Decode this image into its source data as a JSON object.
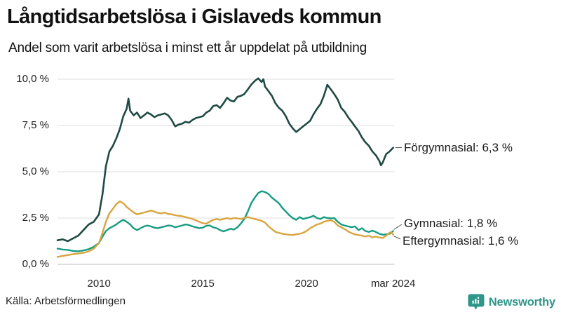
{
  "header": {
    "title": "Långtidsarbetslösa i Gislaveds kommun",
    "subtitle": "Andel som varit arbetslösa i minst ett år uppdelat på utbildning"
  },
  "footer": {
    "source": "Källa: Arbetsförmedlingen",
    "brand": "Newsworthy",
    "brand_color": "#2e9688"
  },
  "chart_data": {
    "type": "line",
    "title": "Långtidsarbetslösa i Gislaveds kommun",
    "subtitle": "Andel som varit arbetslösa i minst ett år uppdelat på utbildning",
    "unit": "%",
    "grid": "horizontal",
    "legend_position": "end-of-line-labels",
    "x_axis": {
      "range": [
        2008,
        2024.25
      ],
      "ticks": [
        {
          "x": 2010,
          "label": "2010"
        },
        {
          "x": 2015,
          "label": "2015"
        },
        {
          "x": 2020,
          "label": "2020"
        },
        {
          "x": 2024.17,
          "label": "mar 2024"
        }
      ]
    },
    "y_axis": {
      "range": [
        0,
        10.4
      ],
      "ticks": [
        {
          "v": 10,
          "label": "10,0 %"
        },
        {
          "v": 7.5,
          "label": "7,5 %"
        },
        {
          "v": 5,
          "label": "5,0 %"
        },
        {
          "v": 2.5,
          "label": "2,5 %"
        },
        {
          "v": 0,
          "label": "0,0 %"
        }
      ]
    },
    "series": [
      {
        "name": "Förgymnasial",
        "end_label": "Förgymnasial: 6,3 %",
        "end_value": 6.3,
        "color": "#1f4a43",
        "points": [
          [
            2008.0,
            1.3
          ],
          [
            2008.25,
            1.35
          ],
          [
            2008.5,
            1.25
          ],
          [
            2008.75,
            1.4
          ],
          [
            2009.0,
            1.55
          ],
          [
            2009.25,
            1.85
          ],
          [
            2009.5,
            2.15
          ],
          [
            2009.75,
            2.3
          ],
          [
            2010.0,
            2.7
          ],
          [
            2010.17,
            3.8
          ],
          [
            2010.33,
            5.3
          ],
          [
            2010.5,
            6.1
          ],
          [
            2010.67,
            6.4
          ],
          [
            2010.83,
            6.8
          ],
          [
            2011.0,
            7.3
          ],
          [
            2011.17,
            8.0
          ],
          [
            2011.33,
            8.4
          ],
          [
            2011.42,
            8.95
          ],
          [
            2011.5,
            8.3
          ],
          [
            2011.67,
            8.05
          ],
          [
            2011.83,
            8.2
          ],
          [
            2012.0,
            7.9
          ],
          [
            2012.17,
            8.05
          ],
          [
            2012.33,
            8.2
          ],
          [
            2012.5,
            8.1
          ],
          [
            2012.67,
            7.95
          ],
          [
            2012.83,
            8.05
          ],
          [
            2013.0,
            8.1
          ],
          [
            2013.17,
            8.15
          ],
          [
            2013.33,
            8.05
          ],
          [
            2013.5,
            7.8
          ],
          [
            2013.67,
            7.45
          ],
          [
            2013.83,
            7.55
          ],
          [
            2014.0,
            7.6
          ],
          [
            2014.17,
            7.7
          ],
          [
            2014.33,
            7.65
          ],
          [
            2014.5,
            7.8
          ],
          [
            2014.67,
            7.9
          ],
          [
            2014.83,
            7.95
          ],
          [
            2015.0,
            8.0
          ],
          [
            2015.17,
            8.2
          ],
          [
            2015.33,
            8.3
          ],
          [
            2015.5,
            8.55
          ],
          [
            2015.67,
            8.6
          ],
          [
            2015.83,
            8.45
          ],
          [
            2016.0,
            8.7
          ],
          [
            2016.17,
            9.0
          ],
          [
            2016.33,
            8.85
          ],
          [
            2016.5,
            8.8
          ],
          [
            2016.67,
            9.05
          ],
          [
            2016.83,
            9.1
          ],
          [
            2017.0,
            9.2
          ],
          [
            2017.17,
            9.45
          ],
          [
            2017.33,
            9.7
          ],
          [
            2017.5,
            9.9
          ],
          [
            2017.67,
            10.05
          ],
          [
            2017.83,
            9.85
          ],
          [
            2017.92,
            10.0
          ],
          [
            2018.0,
            9.6
          ],
          [
            2018.17,
            9.35
          ],
          [
            2018.33,
            9.1
          ],
          [
            2018.5,
            8.7
          ],
          [
            2018.67,
            8.45
          ],
          [
            2018.83,
            8.3
          ],
          [
            2019.0,
            8.0
          ],
          [
            2019.17,
            7.6
          ],
          [
            2019.33,
            7.35
          ],
          [
            2019.5,
            7.15
          ],
          [
            2019.67,
            7.3
          ],
          [
            2019.83,
            7.45
          ],
          [
            2020.0,
            7.6
          ],
          [
            2020.17,
            7.75
          ],
          [
            2020.33,
            8.1
          ],
          [
            2020.5,
            8.4
          ],
          [
            2020.67,
            8.65
          ],
          [
            2020.83,
            9.1
          ],
          [
            2021.0,
            9.7
          ],
          [
            2021.17,
            9.45
          ],
          [
            2021.33,
            9.2
          ],
          [
            2021.5,
            8.9
          ],
          [
            2021.67,
            8.45
          ],
          [
            2021.83,
            8.25
          ],
          [
            2022.0,
            7.95
          ],
          [
            2022.17,
            7.7
          ],
          [
            2022.33,
            7.45
          ],
          [
            2022.5,
            7.2
          ],
          [
            2022.67,
            6.85
          ],
          [
            2022.83,
            6.6
          ],
          [
            2023.0,
            6.4
          ],
          [
            2023.17,
            6.1
          ],
          [
            2023.33,
            5.9
          ],
          [
            2023.5,
            5.6
          ],
          [
            2023.58,
            5.35
          ],
          [
            2023.67,
            5.5
          ],
          [
            2023.83,
            5.95
          ],
          [
            2024.0,
            6.1
          ],
          [
            2024.17,
            6.3
          ]
        ]
      },
      {
        "name": "Gymnasial",
        "end_label": "Gymnasial: 1,8 %",
        "end_value": 1.8,
        "color": "#169b81",
        "points": [
          [
            2008.0,
            0.85
          ],
          [
            2008.25,
            0.8
          ],
          [
            2008.5,
            0.78
          ],
          [
            2008.75,
            0.72
          ],
          [
            2009.0,
            0.7
          ],
          [
            2009.25,
            0.75
          ],
          [
            2009.5,
            0.82
          ],
          [
            2009.75,
            0.95
          ],
          [
            2010.0,
            1.15
          ],
          [
            2010.17,
            1.5
          ],
          [
            2010.33,
            1.8
          ],
          [
            2010.5,
            1.95
          ],
          [
            2010.67,
            2.05
          ],
          [
            2010.83,
            2.15
          ],
          [
            2011.0,
            2.3
          ],
          [
            2011.17,
            2.4
          ],
          [
            2011.33,
            2.3
          ],
          [
            2011.5,
            2.15
          ],
          [
            2011.67,
            1.95
          ],
          [
            2011.83,
            1.85
          ],
          [
            2012.0,
            1.95
          ],
          [
            2012.17,
            2.05
          ],
          [
            2012.33,
            2.1
          ],
          [
            2012.5,
            2.05
          ],
          [
            2012.67,
            1.98
          ],
          [
            2012.83,
            1.95
          ],
          [
            2013.0,
            2.0
          ],
          [
            2013.17,
            2.05
          ],
          [
            2013.33,
            2.1
          ],
          [
            2013.5,
            2.08
          ],
          [
            2013.67,
            2.0
          ],
          [
            2013.83,
            2.05
          ],
          [
            2014.0,
            2.1
          ],
          [
            2014.17,
            2.15
          ],
          [
            2014.33,
            2.12
          ],
          [
            2014.5,
            2.05
          ],
          [
            2014.67,
            2.0
          ],
          [
            2014.83,
            1.95
          ],
          [
            2015.0,
            1.98
          ],
          [
            2015.17,
            2.08
          ],
          [
            2015.33,
            2.1
          ],
          [
            2015.5,
            2.0
          ],
          [
            2015.67,
            1.95
          ],
          [
            2015.83,
            1.85
          ],
          [
            2016.0,
            1.78
          ],
          [
            2016.17,
            1.85
          ],
          [
            2016.33,
            1.92
          ],
          [
            2016.5,
            1.88
          ],
          [
            2016.67,
            2.0
          ],
          [
            2016.83,
            2.2
          ],
          [
            2017.0,
            2.45
          ],
          [
            2017.17,
            2.85
          ],
          [
            2017.33,
            3.3
          ],
          [
            2017.5,
            3.6
          ],
          [
            2017.67,
            3.85
          ],
          [
            2017.83,
            3.95
          ],
          [
            2018.0,
            3.9
          ],
          [
            2018.17,
            3.8
          ],
          [
            2018.33,
            3.6
          ],
          [
            2018.5,
            3.45
          ],
          [
            2018.67,
            3.3
          ],
          [
            2018.83,
            3.05
          ],
          [
            2019.0,
            2.85
          ],
          [
            2019.17,
            2.65
          ],
          [
            2019.33,
            2.5
          ],
          [
            2019.5,
            2.4
          ],
          [
            2019.67,
            2.55
          ],
          [
            2019.83,
            2.45
          ],
          [
            2020.0,
            2.5
          ],
          [
            2020.17,
            2.55
          ],
          [
            2020.33,
            2.62
          ],
          [
            2020.5,
            2.5
          ],
          [
            2020.67,
            2.45
          ],
          [
            2020.83,
            2.55
          ],
          [
            2021.0,
            2.5
          ],
          [
            2021.17,
            2.48
          ],
          [
            2021.33,
            2.5
          ],
          [
            2021.5,
            2.3
          ],
          [
            2021.67,
            2.15
          ],
          [
            2021.83,
            2.1
          ],
          [
            2022.0,
            2.05
          ],
          [
            2022.17,
            2.0
          ],
          [
            2022.33,
            2.05
          ],
          [
            2022.5,
            1.85
          ],
          [
            2022.67,
            1.95
          ],
          [
            2022.83,
            1.8
          ],
          [
            2023.0,
            1.75
          ],
          [
            2023.17,
            1.82
          ],
          [
            2023.33,
            1.75
          ],
          [
            2023.5,
            1.65
          ],
          [
            2023.67,
            1.6
          ],
          [
            2023.83,
            1.62
          ],
          [
            2024.0,
            1.65
          ],
          [
            2024.08,
            1.7
          ],
          [
            2024.17,
            1.8
          ]
        ]
      },
      {
        "name": "Eftergymnasial",
        "end_label": "Eftergymnasial: 1,6 %",
        "end_value": 1.6,
        "color": "#d9a43e",
        "points": [
          [
            2008.0,
            0.4
          ],
          [
            2008.25,
            0.45
          ],
          [
            2008.5,
            0.5
          ],
          [
            2008.75,
            0.55
          ],
          [
            2009.0,
            0.58
          ],
          [
            2009.25,
            0.62
          ],
          [
            2009.5,
            0.7
          ],
          [
            2009.75,
            0.85
          ],
          [
            2010.0,
            1.15
          ],
          [
            2010.17,
            1.7
          ],
          [
            2010.33,
            2.3
          ],
          [
            2010.5,
            2.75
          ],
          [
            2010.67,
            3.0
          ],
          [
            2010.83,
            3.25
          ],
          [
            2011.0,
            3.4
          ],
          [
            2011.17,
            3.3
          ],
          [
            2011.33,
            3.1
          ],
          [
            2011.5,
            2.95
          ],
          [
            2011.67,
            2.8
          ],
          [
            2011.83,
            2.7
          ],
          [
            2012.0,
            2.75
          ],
          [
            2012.17,
            2.8
          ],
          [
            2012.33,
            2.85
          ],
          [
            2012.5,
            2.9
          ],
          [
            2012.67,
            2.85
          ],
          [
            2012.83,
            2.78
          ],
          [
            2013.0,
            2.75
          ],
          [
            2013.17,
            2.8
          ],
          [
            2013.33,
            2.72
          ],
          [
            2013.5,
            2.7
          ],
          [
            2013.67,
            2.65
          ],
          [
            2013.83,
            2.62
          ],
          [
            2014.0,
            2.6
          ],
          [
            2014.17,
            2.55
          ],
          [
            2014.33,
            2.5
          ],
          [
            2014.5,
            2.45
          ],
          [
            2014.67,
            2.38
          ],
          [
            2014.83,
            2.3
          ],
          [
            2015.0,
            2.22
          ],
          [
            2015.17,
            2.2
          ],
          [
            2015.33,
            2.3
          ],
          [
            2015.5,
            2.4
          ],
          [
            2015.67,
            2.45
          ],
          [
            2015.83,
            2.4
          ],
          [
            2016.0,
            2.45
          ],
          [
            2016.17,
            2.5
          ],
          [
            2016.33,
            2.45
          ],
          [
            2016.5,
            2.5
          ],
          [
            2016.67,
            2.48
          ],
          [
            2016.83,
            2.45
          ],
          [
            2017.0,
            2.5
          ],
          [
            2017.17,
            2.55
          ],
          [
            2017.33,
            2.5
          ],
          [
            2017.5,
            2.45
          ],
          [
            2017.67,
            2.4
          ],
          [
            2017.83,
            2.35
          ],
          [
            2018.0,
            2.25
          ],
          [
            2018.17,
            2.05
          ],
          [
            2018.33,
            1.9
          ],
          [
            2018.5,
            1.75
          ],
          [
            2018.67,
            1.7
          ],
          [
            2018.83,
            1.65
          ],
          [
            2019.0,
            1.62
          ],
          [
            2019.17,
            1.6
          ],
          [
            2019.33,
            1.58
          ],
          [
            2019.5,
            1.62
          ],
          [
            2019.67,
            1.65
          ],
          [
            2019.83,
            1.7
          ],
          [
            2020.0,
            1.8
          ],
          [
            2020.17,
            1.95
          ],
          [
            2020.33,
            2.05
          ],
          [
            2020.5,
            2.15
          ],
          [
            2020.67,
            2.2
          ],
          [
            2020.83,
            2.3
          ],
          [
            2021.0,
            2.35
          ],
          [
            2021.17,
            2.38
          ],
          [
            2021.33,
            2.3
          ],
          [
            2021.5,
            2.1
          ],
          [
            2021.67,
            2.0
          ],
          [
            2021.83,
            1.9
          ],
          [
            2022.0,
            1.78
          ],
          [
            2022.17,
            1.68
          ],
          [
            2022.33,
            1.62
          ],
          [
            2022.5,
            1.58
          ],
          [
            2022.67,
            1.55
          ],
          [
            2022.83,
            1.5
          ],
          [
            2023.0,
            1.55
          ],
          [
            2023.17,
            1.45
          ],
          [
            2023.33,
            1.5
          ],
          [
            2023.5,
            1.45
          ],
          [
            2023.67,
            1.42
          ],
          [
            2023.83,
            1.55
          ],
          [
            2024.0,
            1.7
          ],
          [
            2024.08,
            1.75
          ],
          [
            2024.17,
            1.6
          ]
        ]
      }
    ],
    "source": "Källa: Arbetsförmedlingen",
    "colors": {
      "grid": "#e4e4e4",
      "axis": "#c9c9c9",
      "text": "#1a1a1a",
      "connector": "#555555"
    }
  }
}
